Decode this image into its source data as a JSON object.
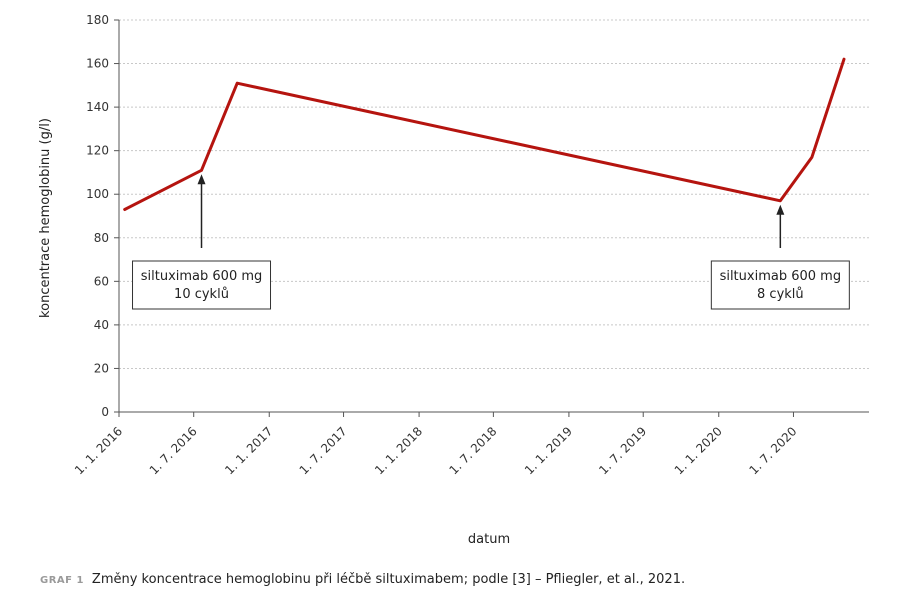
{
  "caption": {
    "label": "GRAF 1",
    "text": "Změny koncentrace hemoglobinu při léčbě siltuximabem; podle [3] – Pfliegler, et al., 2021."
  },
  "chart_data": {
    "type": "line",
    "xlabel": "datum",
    "ylabel": "koncentrace hemoglobinu (g/l)",
    "ylim": [
      0,
      180
    ],
    "yticks": [
      0,
      20,
      40,
      60,
      80,
      100,
      120,
      140,
      160,
      180
    ],
    "x_ticks": [
      "2016-01-01",
      "2016-07-01",
      "2017-01-01",
      "2017-07-01",
      "2018-01-01",
      "2018-07-01",
      "2019-01-01",
      "2019-07-01",
      "2020-01-01",
      "2020-07-01"
    ],
    "x_tick_labels": [
      "1. 1. 2016",
      "1. 7. 2016",
      "1. 1. 2017",
      "1. 7. 2017",
      "1. 1. 2018",
      "1. 7. 2018",
      "1. 1. 2019",
      "1. 7. 2019",
      "1. 1. 2020",
      "1. 7. 2020"
    ],
    "xlim": [
      "2016-01-01",
      "2021-01-01"
    ],
    "grid": "horizontal-dashed",
    "line_color": "#b5140f",
    "series": [
      {
        "x": [
          "2016-01-15",
          "2016-07-20",
          "2016-10-15",
          "2020-05-30",
          "2020-08-15",
          "2020-11-01"
        ],
        "values": [
          93,
          111,
          151,
          97,
          117,
          162
        ]
      }
    ],
    "annotations": [
      {
        "lines": [
          "siltuximab 600 mg",
          "10 cyklů"
        ],
        "x": "2016-07-20",
        "y": 111
      },
      {
        "lines": [
          "siltuximab 600 mg",
          "8 cyklů"
        ],
        "x": "2020-05-30",
        "y": 97
      }
    ]
  }
}
